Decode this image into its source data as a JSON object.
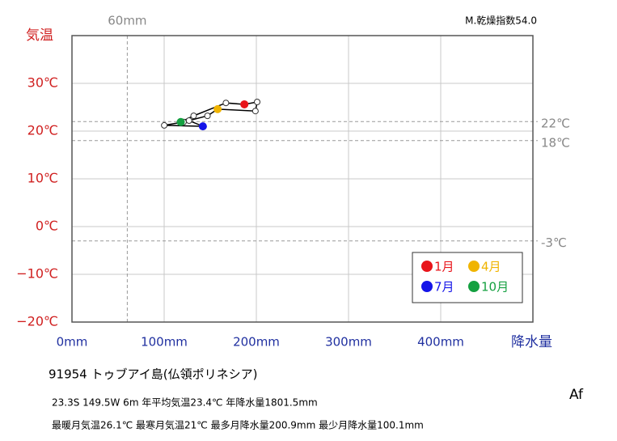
{
  "chart_data": {
    "type": "climograph",
    "top_note": "M.乾燥指数54.0",
    "xlabel": "降水量",
    "ylabel": "気温",
    "xlim": [
      0,
      500
    ],
    "xticks": [
      {
        "value": 0,
        "label": "0mm"
      },
      {
        "value": 100,
        "label": "100mm"
      },
      {
        "value": 200,
        "label": "200mm"
      },
      {
        "value": 300,
        "label": "300mm"
      },
      {
        "value": 400,
        "label": "400mm"
      }
    ],
    "ylim": [
      -20,
      40
    ],
    "yticks": [
      {
        "value": -20,
        "label": "−20℃"
      },
      {
        "value": -10,
        "label": "−10℃"
      },
      {
        "value": 0,
        "label": "0℃"
      },
      {
        "value": 10,
        "label": "10℃"
      },
      {
        "value": 20,
        "label": "20℃"
      },
      {
        "value": 30,
        "label": "30℃"
      }
    ],
    "grid": true,
    "x_ref": [
      {
        "value": 60,
        "label": "60mm"
      }
    ],
    "y_ref": [
      {
        "value": 22,
        "label": "22℃"
      },
      {
        "value": 18,
        "label": "18℃"
      },
      {
        "value": -3,
        "label": "-3℃"
      }
    ],
    "series": [
      {
        "x": [
          187,
          200.9,
          199,
          158,
          147,
          127,
          142,
          100.1,
          121,
          118,
          132,
          167
        ],
        "values": [
          25.6,
          26.1,
          24.2,
          24.6,
          23.2,
          22.2,
          21.0,
          21.2,
          21.9,
          21.9,
          23.2,
          25.9
        ],
        "colors": [
          "#e8141a",
          "#ffffff",
          "#ffffff",
          "#f0b400",
          "#ffffff",
          "#ffffff",
          "#1414e8",
          "#ffffff",
          "#ffffff",
          "#14a040",
          "#ffffff",
          "#ffffff"
        ]
      }
    ],
    "legend": [
      {
        "name": "1月",
        "color": "#e8141a"
      },
      {
        "name": "4月",
        "color": "#f0b400"
      },
      {
        "name": "7月",
        "color": "#1414e8"
      },
      {
        "name": "10月",
        "color": "#14a040"
      }
    ],
    "station": "91954  トゥブアイ島(仏領ポリネシア)",
    "info_line1": "23.3S   149.5W  6m   年平均気温23.4℃  年降水量1801.5mm",
    "info_line2": "最暖月気温26.1℃  最寒月気温21℃  最多月降水量200.9mm  最少月降水量100.1mm",
    "climate": "Af"
  }
}
